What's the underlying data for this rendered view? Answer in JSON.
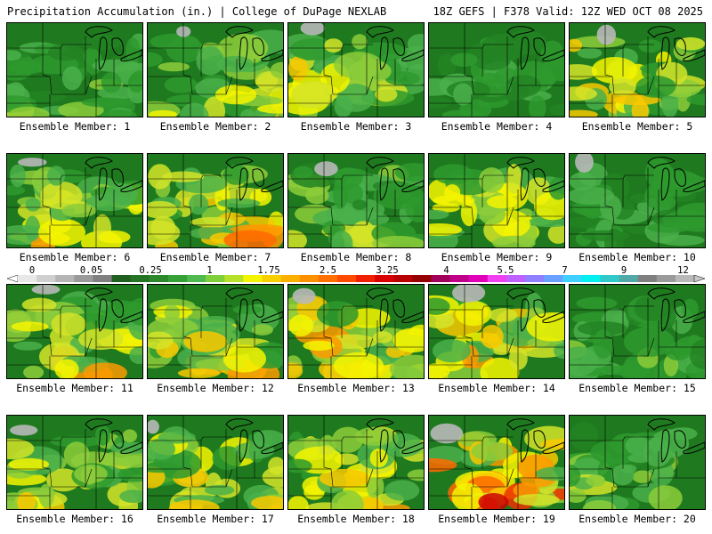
{
  "header": {
    "left": "Precipitation Accumulation (in.) | College of DuPage NEXLAB",
    "right": "18Z GEFS | F378 Valid: 12Z WED OCT 08 2025"
  },
  "legend": {
    "ticks": [
      "0",
      "0.05",
      "0.25",
      "1",
      "1.75",
      "2.5",
      "3.25",
      "4",
      "5.5",
      "7",
      "9",
      "12"
    ],
    "colors": [
      "#e8e8e8",
      "#cfcfcf",
      "#b5b5b5",
      "#9a9a9a",
      "#808080",
      "#1f5f1f",
      "#257325",
      "#2d882d",
      "#35a035",
      "#4fb84f",
      "#7fcf3a",
      "#b7e02a",
      "#f4f400",
      "#f8d000",
      "#fbb000",
      "#fd9000",
      "#ff7000",
      "#ff4a00",
      "#f02000",
      "#d80000",
      "#b80000",
      "#950000",
      "#a0005a",
      "#c00088",
      "#e000b8",
      "#f040f0",
      "#c060ff",
      "#9080ff",
      "#6aa0ff",
      "#40d0ff",
      "#00f0f0",
      "#30c8c8",
      "#50a8a8",
      "#808080",
      "#9a9a9a",
      "#b8b8b8"
    ]
  },
  "members": [
    {
      "label": "Ensemble Member: 1",
      "intensity": 0.35,
      "south": 0.6,
      "west": 0.3
    },
    {
      "label": "Ensemble Member: 2",
      "intensity": 0.5,
      "south": 0.7,
      "west": 0.2
    },
    {
      "label": "Ensemble Member: 3",
      "intensity": 0.55,
      "south": 0.4,
      "west": 0.6
    },
    {
      "label": "Ensemble Member: 4",
      "intensity": 0.3,
      "south": 0.5,
      "west": 0.2
    },
    {
      "label": "Ensemble Member: 5",
      "intensity": 0.75,
      "south": 0.2,
      "west": 0.5
    },
    {
      "label": "Ensemble Member: 6",
      "intensity": 0.55,
      "south": 0.8,
      "west": 0.4
    },
    {
      "label": "Ensemble Member: 7",
      "intensity": 0.6,
      "south": 0.85,
      "west": 0.1
    },
    {
      "label": "Ensemble Member: 8",
      "intensity": 0.4,
      "south": 0.6,
      "west": 0.7
    },
    {
      "label": "Ensemble Member: 9",
      "intensity": 0.6,
      "south": 0.5,
      "west": 0.5
    },
    {
      "label": "Ensemble Member: 10",
      "intensity": 0.3,
      "south": 0.4,
      "west": 0.3
    },
    {
      "label": "Ensemble Member: 11",
      "intensity": 0.55,
      "south": 0.85,
      "west": 0.2
    },
    {
      "label": "Ensemble Member: 12",
      "intensity": 0.55,
      "south": 0.9,
      "west": 0.2
    },
    {
      "label": "Ensemble Member: 13",
      "intensity": 0.7,
      "south": 0.5,
      "west": 0.5
    },
    {
      "label": "Ensemble Member: 14",
      "intensity": 0.7,
      "south": 0.5,
      "west": 0.3
    },
    {
      "label": "Ensemble Member: 15",
      "intensity": 0.35,
      "south": 0.6,
      "west": 0.2
    },
    {
      "label": "Ensemble Member: 16",
      "intensity": 0.45,
      "south": 0.8,
      "west": 0.5
    },
    {
      "label": "Ensemble Member: 17",
      "intensity": 0.6,
      "south": 0.7,
      "west": 0.1
    },
    {
      "label": "Ensemble Member: 18",
      "intensity": 0.55,
      "south": 0.75,
      "west": 0.3
    },
    {
      "label": "Ensemble Member: 19",
      "intensity": 0.75,
      "south": 0.8,
      "west": 0.3
    },
    {
      "label": "Ensemble Member: 20",
      "intensity": 0.4,
      "south": 0.7,
      "west": 0.2
    }
  ]
}
